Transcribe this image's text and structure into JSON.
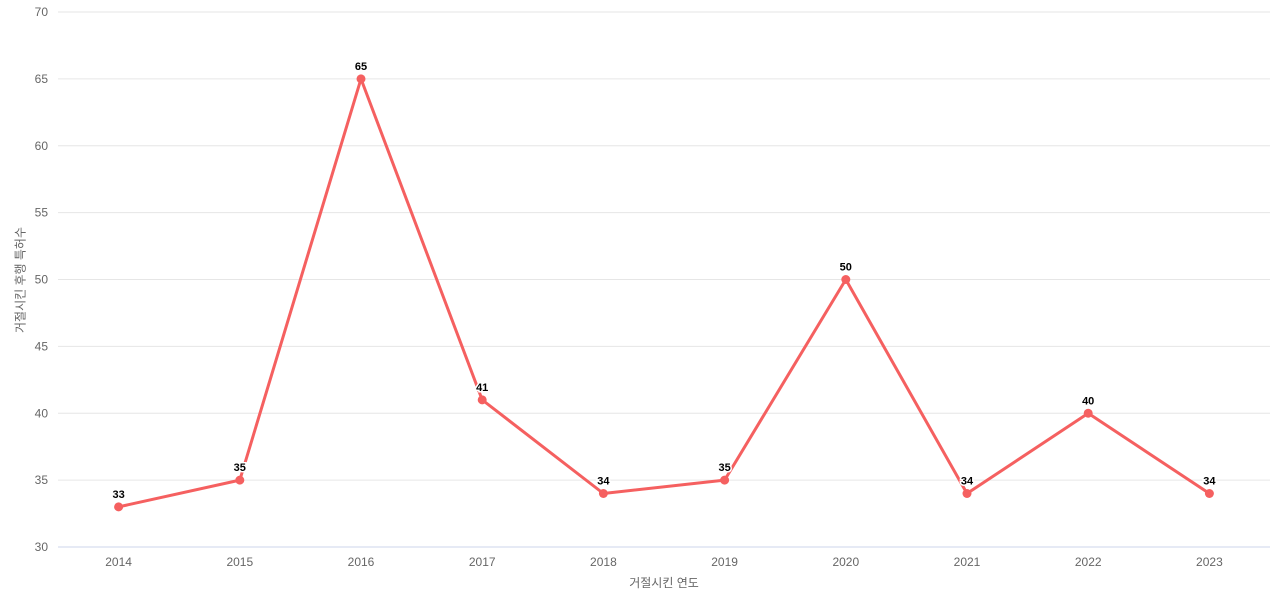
{
  "chart_data": {
    "type": "line",
    "categories": [
      "2014",
      "2015",
      "2016",
      "2017",
      "2018",
      "2019",
      "2020",
      "2021",
      "2022",
      "2023"
    ],
    "series": [
      {
        "name": "거절시킨 후행 특허수",
        "values": [
          33,
          35,
          65,
          41,
          34,
          35,
          50,
          34,
          40,
          34
        ]
      }
    ],
    "title": "",
    "xlabel": "거절시킨 연도",
    "ylabel": "거절시킨 후행 특허수",
    "ylim": [
      30,
      70
    ],
    "ytick_step": 5,
    "grid": true,
    "legend_position": "none",
    "colors": {
      "line": "#f56060",
      "marker": "#f56060",
      "data_label": "#000000",
      "tick_label": "#666666",
      "grid_line": "#e6e6e6",
      "axis_line": "#ccd6eb",
      "background": "#ffffff"
    }
  }
}
